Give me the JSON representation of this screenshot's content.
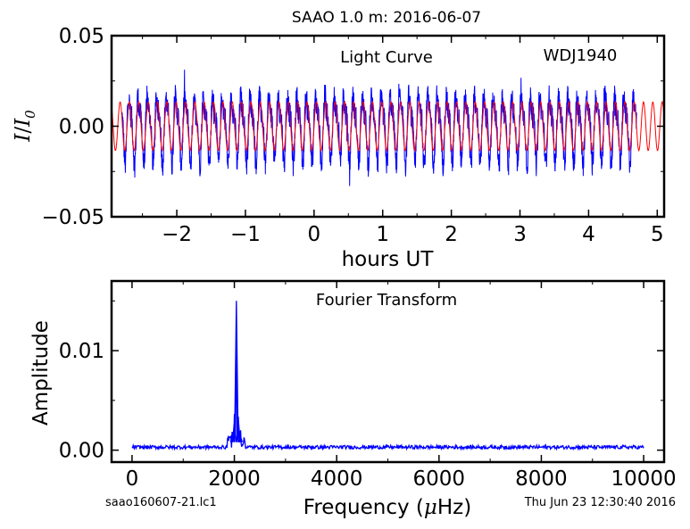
{
  "figure": {
    "title": "SAAO 1.0 m:  2016-06-07",
    "footer_left": "saao160607-21.lc1",
    "footer_right": "Thu Jun 23 12:30:40 2016"
  },
  "colors": {
    "data": "#0000ff",
    "model": "#ff0000",
    "axes": "#000000"
  },
  "chart_data": [
    {
      "type": "line",
      "annotation": "Light Curve",
      "target_label": "WDJ1940",
      "xlabel": "hours UT",
      "ylabel_base": "I",
      "ylabel_sub": "0",
      "xlim": [
        -2.95,
        5.1
      ],
      "ylim": [
        -0.05,
        0.05
      ],
      "x_ticks": [
        -2,
        -1,
        0,
        1,
        2,
        3,
        4,
        5
      ],
      "x_tick_labels": [
        "−2",
        "−1",
        "0",
        "1",
        "2",
        "3",
        "4",
        "5"
      ],
      "y_ticks": [
        -0.05,
        0.0,
        0.05
      ],
      "y_tick_labels": [
        "−0.05",
        "0.00",
        "0.05"
      ],
      "series": [
        {
          "role": "data",
          "x_range": [
            -2.8,
            4.7
          ],
          "amplitude_range": [
            -0.033,
            0.035
          ],
          "dominant_frequency_uHz": 2040,
          "color": "#0000ff"
        },
        {
          "role": "sinusoid fit",
          "x_range": [
            -2.95,
            5.1
          ],
          "amplitude": 0.0135,
          "frequency_uHz": 2040,
          "color": "#ff0000"
        }
      ]
    },
    {
      "type": "line",
      "annotation": "Fourier Transform",
      "xlabel_prefix": "Frequency (",
      "xlabel_unit_mu": "μ",
      "xlabel_suffix": "Hz)",
      "ylabel": "Amplitude",
      "xlim": [
        -400,
        10400
      ],
      "ylim": [
        -0.0012,
        0.017
      ],
      "x_ticks": [
        0,
        2000,
        4000,
        6000,
        8000,
        10000
      ],
      "x_tick_labels": [
        "0",
        "2000",
        "4000",
        "6000",
        "8000",
        "10000"
      ],
      "y_ticks": [
        0.0,
        0.01
      ],
      "y_tick_labels": [
        "0.00",
        "0.01"
      ],
      "series": [
        {
          "role": "amplitude spectrum",
          "x_range": [
            0,
            10000
          ],
          "noise_level": 0.0003,
          "peaks": [
            {
              "x": 2040,
              "y": 0.015
            },
            {
              "x": 2000,
              "y": 0.003
            },
            {
              "x": 2080,
              "y": 0.003
            },
            {
              "x": 1960,
              "y": 0.0018
            },
            {
              "x": 2120,
              "y": 0.0014
            }
          ],
          "color": "#0000ff"
        }
      ]
    }
  ]
}
